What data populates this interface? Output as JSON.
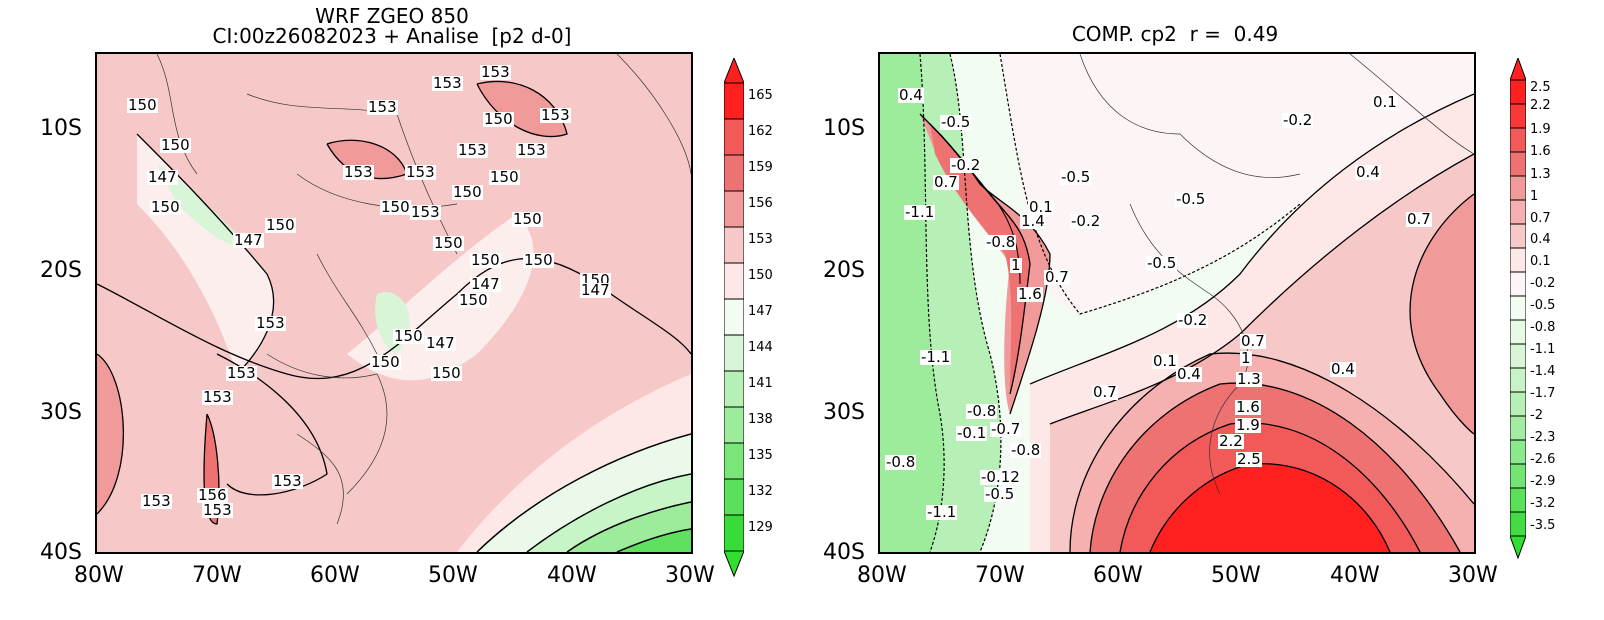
{
  "left_panel": {
    "title_line1": "WRF ZGEO 850",
    "title_line2": "CI:00z26082023 + Analise  [p2 d-0]",
    "lat_labels": [
      "10S",
      "20S",
      "30S",
      "40S"
    ],
    "lon_labels": [
      "80W",
      "70W",
      "60W",
      "50W",
      "40W",
      "30W"
    ],
    "colorbar_labels": [
      "165",
      "162",
      "159",
      "156",
      "153",
      "150",
      "147",
      "144",
      "141",
      "138",
      "135",
      "132",
      "129"
    ],
    "contour_labels": [
      "153",
      "153",
      "150",
      "153",
      "150",
      "153",
      "150",
      "147",
      "153",
      "153",
      "150",
      "153",
      "150",
      "153",
      "150",
      "153",
      "150",
      "150",
      "147",
      "150",
      "150",
      "150",
      "150",
      "147",
      "153",
      "150",
      "147",
      "150",
      "150",
      "153",
      "153",
      "156",
      "153",
      "153",
      "147",
      "150",
      "150",
      "153"
    ]
  },
  "right_panel": {
    "title": "COMP. cp2  r =  0.49",
    "lat_labels": [
      "10S",
      "20S",
      "30S",
      "40S"
    ],
    "lon_labels": [
      "80W",
      "70W",
      "60W",
      "50W",
      "40W",
      "30W"
    ],
    "colorbar_labels": [
      "2.5",
      "2.2",
      "1.9",
      "1.6",
      "1.3",
      "1",
      "0.7",
      "0.4",
      "0.1",
      "-0.2",
      "-0.5",
      "-0.8",
      "-1.1",
      "-1.4",
      "-1.7",
      "-2",
      "-2.3",
      "-2.6",
      "-2.9",
      "-3.2",
      "-3.5"
    ],
    "contour_labels": [
      "0.4",
      "-0.5",
      "0.1",
      "-0.2",
      "-0.2",
      "0.4",
      "0.7",
      "-0.5",
      "-0.5",
      "0.7",
      "0.1",
      "1.4",
      "-0.2",
      "-1.1",
      "-0.8",
      "-0.5",
      "1",
      "0.7",
      "1.6",
      "-0.2",
      "0.7",
      "1",
      "0.1",
      "0.4",
      "1.3",
      "0.4",
      "-1.1",
      "0.7",
      "1.6",
      "1.9",
      "2.2",
      "2.5",
      "-0.8",
      "-0.8",
      "-0.1",
      "-0.7",
      "-0.8",
      "-0.12",
      "-0.5",
      "-1.1"
    ]
  },
  "colors": {
    "red_max": "#ff2020",
    "red_light": "#f6c8c8",
    "white": "#fdeeee",
    "green_light": "#c8f5c8",
    "green_max": "#30e030"
  }
}
